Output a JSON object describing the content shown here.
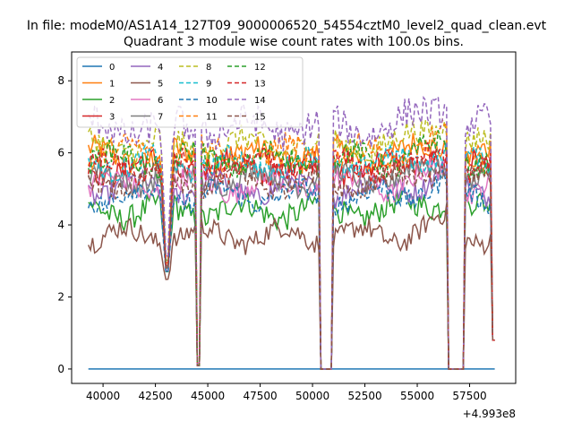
{
  "chart_data": {
    "type": "line",
    "suptitle": "In file: modeM0/AS1A14_127T09_9000006520_54554cztM0_level2_quad_clean.evt",
    "title": "Quadrant 3 module wise count rates with 100.0s bins.",
    "xlabel": "",
    "ylabel": "",
    "x_offset_label": "+4.993e8",
    "xlim": [
      38500,
      59700
    ],
    "ylim": [
      -0.4,
      8.8
    ],
    "x_ticks": [
      40000,
      42500,
      45000,
      47500,
      50000,
      52500,
      55000,
      57500
    ],
    "x_tick_labels": [
      "40000",
      "42500",
      "45000",
      "47500",
      "50000",
      "52500",
      "55000",
      "57500"
    ],
    "y_ticks": [
      0,
      2,
      4,
      6,
      8
    ],
    "y_tick_labels": [
      "0",
      "2",
      "4",
      "6",
      "8"
    ],
    "x_start": 39300,
    "x_end": 58700,
    "bin_width": 100,
    "gaps": [
      {
        "from": 44450,
        "to": 44650,
        "min": 0.1
      },
      {
        "from": 50400,
        "to": 50900,
        "min": 0.0
      },
      {
        "from": 56500,
        "to": 57200,
        "min": 0.0
      },
      {
        "from": 58600,
        "to": 58700,
        "min": 0.8
      }
    ],
    "dips": [
      {
        "center": 43050,
        "width": 300,
        "level": 2.3
      }
    ],
    "legend_position": "upper left",
    "series": [
      {
        "name": "0",
        "color": "#1f77b4",
        "dash": "solid",
        "constant": 0
      },
      {
        "name": "1",
        "color": "#ff7f0e",
        "dash": "solid",
        "base": 5.9,
        "noise": 0.35
      },
      {
        "name": "2",
        "color": "#2ca02c",
        "dash": "solid",
        "base": 4.4,
        "noise": 0.35
      },
      {
        "name": "3",
        "color": "#d62728",
        "dash": "solid",
        "base": 5.6,
        "noise": 0.35
      },
      {
        "name": "4",
        "color": "#9467bd",
        "dash": "solid",
        "base": 5.0,
        "noise": 0.3
      },
      {
        "name": "5",
        "color": "#8c564b",
        "dash": "solid",
        "base": 3.7,
        "noise": 0.3
      },
      {
        "name": "6",
        "color": "#e377c2",
        "dash": "solid",
        "base": 5.1,
        "noise": 0.3
      },
      {
        "name": "7",
        "color": "#7f7f7f",
        "dash": "solid",
        "base": 5.3,
        "noise": 0.3
      },
      {
        "name": "8",
        "color": "#bcbd22",
        "dash": "dashed",
        "base": 6.2,
        "noise": 0.35
      },
      {
        "name": "9",
        "color": "#17becf",
        "dash": "dashed",
        "base": 5.7,
        "noise": 0.3
      },
      {
        "name": "10",
        "color": "#1f77b4",
        "dash": "dashed",
        "base": 4.8,
        "noise": 0.3
      },
      {
        "name": "11",
        "color": "#ff7f0e",
        "dash": "dashed",
        "base": 6.0,
        "noise": 0.35
      },
      {
        "name": "12",
        "color": "#2ca02c",
        "dash": "dashed",
        "base": 5.8,
        "noise": 0.35
      },
      {
        "name": "13",
        "color": "#d62728",
        "dash": "dashed",
        "base": 5.6,
        "noise": 0.3
      },
      {
        "name": "14",
        "color": "#9467bd",
        "dash": "dashed",
        "base": 6.7,
        "noise": 0.45
      },
      {
        "name": "15",
        "color": "#8c564b",
        "dash": "dashed",
        "base": 5.2,
        "noise": 0.3
      }
    ]
  }
}
